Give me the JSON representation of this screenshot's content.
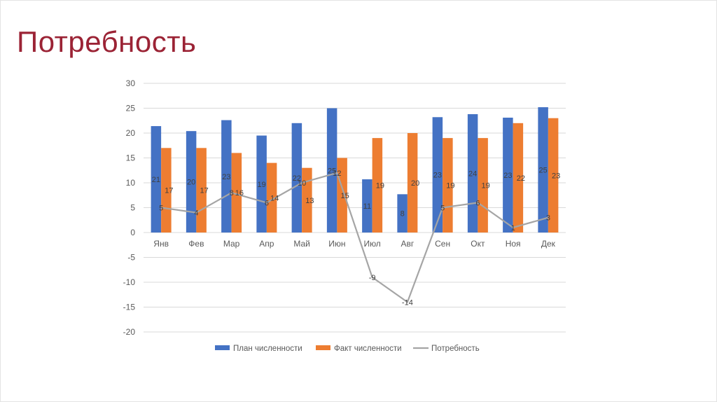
{
  "slide": {
    "title": "Потребность"
  },
  "colors": {
    "title": "#9b2335",
    "plan": "#4472c4",
    "fact": "#ed7d31",
    "need": "#a5a5a5",
    "grid": "#d9d9d9"
  },
  "chart_data": {
    "type": "bar",
    "title": "",
    "xlabel": "",
    "ylabel": "",
    "ylim": [
      -20,
      30
    ],
    "yticks": [
      30,
      25,
      20,
      15,
      10,
      5,
      0,
      -5,
      -10,
      -15,
      -20
    ],
    "grid": true,
    "legend_position": "bottom",
    "categories": [
      "Янв",
      "Фев",
      "Мар",
      "Апр",
      "Май",
      "Июн",
      "Июл",
      "Авг",
      "Сен",
      "Окт",
      "Ноя",
      "Дек"
    ],
    "series": [
      {
        "name": "План численности",
        "type": "bar",
        "values": [
          21.4,
          20.4,
          22.6,
          19.5,
          22,
          25,
          10.7,
          7.7,
          23.2,
          23.8,
          23.1,
          25.2
        ],
        "labels": [
          "21",
          "20",
          "23",
          "19",
          "22",
          "25",
          "11",
          "8",
          "23",
          "24",
          "23",
          "25"
        ]
      },
      {
        "name": "Факт численности",
        "type": "bar",
        "values": [
          17,
          17,
          16,
          14,
          13,
          15,
          19,
          20,
          19,
          19,
          22,
          23
        ],
        "labels": [
          "17",
          "17",
          "16",
          "14",
          "13",
          "15",
          "19",
          "20",
          "19",
          "19",
          "22",
          "23"
        ]
      },
      {
        "name": "Потребность",
        "type": "line",
        "values": [
          5,
          4,
          8,
          6,
          10,
          12,
          -9,
          -14,
          5,
          6,
          1,
          3
        ],
        "labels": [
          "5",
          "4",
          "8",
          "6",
          "10",
          "12",
          "-9",
          "-14",
          "5",
          "6",
          "1",
          "3"
        ]
      }
    ]
  }
}
